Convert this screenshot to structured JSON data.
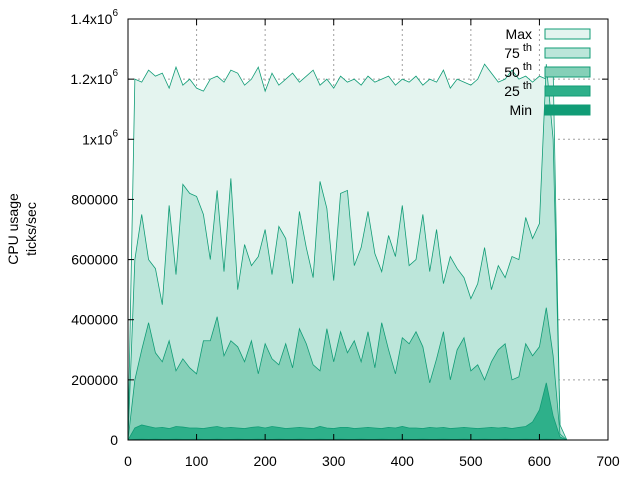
{
  "chart_data": {
    "type": "area",
    "ylabel_lines": [
      "CPU usage",
      "ticks/sec"
    ],
    "xlim": [
      0,
      700
    ],
    "ylim": [
      0,
      1400000
    ],
    "x_ticks": [
      0,
      100,
      200,
      300,
      400,
      500,
      600,
      700
    ],
    "x_tick_labels": [
      "0",
      "100",
      "200",
      "300",
      "400",
      "500",
      "600",
      "700"
    ],
    "y_ticks": [
      0,
      200000,
      400000,
      600000,
      800000,
      1000000,
      1200000,
      1400000
    ],
    "y_tick_labels": [
      {
        "base": "0",
        "sup": ""
      },
      {
        "base": "200000",
        "sup": ""
      },
      {
        "base": "400000",
        "sup": ""
      },
      {
        "base": "600000",
        "sup": ""
      },
      {
        "base": "800000",
        "sup": ""
      },
      {
        "base": "1x10",
        "sup": "6"
      },
      {
        "base": "1.2x10",
        "sup": "6"
      },
      {
        "base": "1.4x10",
        "sup": "6"
      }
    ],
    "grid": true,
    "legend_position": "top-right",
    "x": [
      0,
      10,
      20,
      30,
      40,
      50,
      60,
      70,
      80,
      90,
      100,
      110,
      120,
      130,
      140,
      150,
      160,
      170,
      180,
      190,
      200,
      210,
      220,
      230,
      240,
      250,
      260,
      270,
      280,
      290,
      300,
      310,
      320,
      330,
      340,
      350,
      360,
      370,
      380,
      390,
      400,
      410,
      420,
      430,
      440,
      450,
      460,
      470,
      480,
      490,
      500,
      510,
      520,
      530,
      540,
      550,
      560,
      570,
      580,
      590,
      600,
      610,
      620,
      630,
      640
    ],
    "series": [
      {
        "name": "Max",
        "base": "Max",
        "sup": "",
        "color": "#e4f4ef",
        "values": [
          0,
          1200000,
          1190000,
          1230000,
          1210000,
          1220000,
          1170000,
          1240000,
          1180000,
          1200000,
          1170000,
          1160000,
          1200000,
          1210000,
          1190000,
          1230000,
          1220000,
          1180000,
          1200000,
          1240000,
          1160000,
          1220000,
          1180000,
          1200000,
          1220000,
          1190000,
          1210000,
          1230000,
          1180000,
          1200000,
          1170000,
          1210000,
          1190000,
          1200000,
          1180000,
          1210000,
          1190000,
          1200000,
          1210000,
          1180000,
          1200000,
          1190000,
          1210000,
          1180000,
          1200000,
          1190000,
          1230000,
          1170000,
          1200000,
          1190000,
          1180000,
          1200000,
          1250000,
          1220000,
          1190000,
          1200000,
          1230000,
          1200000,
          1210000,
          1190000,
          1210000,
          1200000,
          1230000,
          40000,
          0
        ]
      },
      {
        "name": "75 th",
        "base": "75",
        "sup": "th",
        "color": "#bce6da",
        "values": [
          0,
          600000,
          750000,
          600000,
          570000,
          450000,
          780000,
          550000,
          850000,
          820000,
          810000,
          750000,
          600000,
          830000,
          560000,
          870000,
          500000,
          650000,
          580000,
          610000,
          700000,
          550000,
          710000,
          670000,
          520000,
          760000,
          640000,
          540000,
          860000,
          770000,
          530000,
          820000,
          830000,
          580000,
          640000,
          760000,
          620000,
          560000,
          680000,
          610000,
          780000,
          580000,
          600000,
          750000,
          560000,
          700000,
          520000,
          610000,
          570000,
          540000,
          470000,
          520000,
          640000,
          500000,
          580000,
          540000,
          610000,
          600000,
          740000,
          670000,
          720000,
          1250000,
          1000000,
          50000,
          0
        ]
      },
      {
        "name": "50 th",
        "base": "50",
        "sup": "th",
        "color": "#85d0b8",
        "values": [
          0,
          200000,
          300000,
          390000,
          290000,
          260000,
          330000,
          230000,
          270000,
          240000,
          220000,
          330000,
          330000,
          410000,
          280000,
          330000,
          310000,
          260000,
          330000,
          220000,
          320000,
          270000,
          250000,
          320000,
          240000,
          370000,
          320000,
          250000,
          230000,
          370000,
          260000,
          360000,
          290000,
          330000,
          260000,
          360000,
          240000,
          390000,
          300000,
          220000,
          340000,
          320000,
          360000,
          310000,
          190000,
          270000,
          360000,
          200000,
          300000,
          340000,
          230000,
          250000,
          200000,
          260000,
          300000,
          320000,
          200000,
          210000,
          320000,
          280000,
          310000,
          440000,
          280000,
          20000,
          0
        ]
      },
      {
        "name": "25 th",
        "base": "25",
        "sup": "th",
        "color": "#2eb08a",
        "values": [
          0,
          40000,
          50000,
          45000,
          40000,
          42000,
          38000,
          45000,
          43000,
          40000,
          40000,
          38000,
          42000,
          45000,
          40000,
          42000,
          40000,
          38000,
          42000,
          44000,
          40000,
          45000,
          42000,
          38000,
          40000,
          42000,
          40000,
          38000,
          45000,
          40000,
          38000,
          42000,
          42000,
          38000,
          40000,
          42000,
          40000,
          38000,
          42000,
          40000,
          45000,
          40000,
          40000,
          38000,
          42000,
          40000,
          42000,
          38000,
          40000,
          42000,
          40000,
          38000,
          40000,
          42000,
          40000,
          42000,
          38000,
          42000,
          45000,
          60000,
          100000,
          190000,
          80000,
          10000,
          0
        ]
      },
      {
        "name": "Min",
        "base": "Min",
        "sup": "",
        "color": "#119c76",
        "values": [
          0,
          2000,
          3000,
          2000,
          3000,
          2000,
          2000,
          3000,
          2000,
          2000,
          3000,
          2000,
          2000,
          3000,
          2000,
          2000,
          3000,
          2000,
          2000,
          3000,
          2000,
          2000,
          3000,
          2000,
          2000,
          3000,
          2000,
          2000,
          3000,
          2000,
          2000,
          3000,
          2000,
          2000,
          3000,
          2000,
          2000,
          3000,
          2000,
          2000,
          3000,
          2000,
          2000,
          3000,
          2000,
          2000,
          3000,
          2000,
          2000,
          3000,
          2000,
          2000,
          3000,
          2000,
          2000,
          3000,
          2000,
          2000,
          3000,
          2000,
          2000,
          3000,
          2000,
          0,
          0
        ]
      }
    ]
  }
}
